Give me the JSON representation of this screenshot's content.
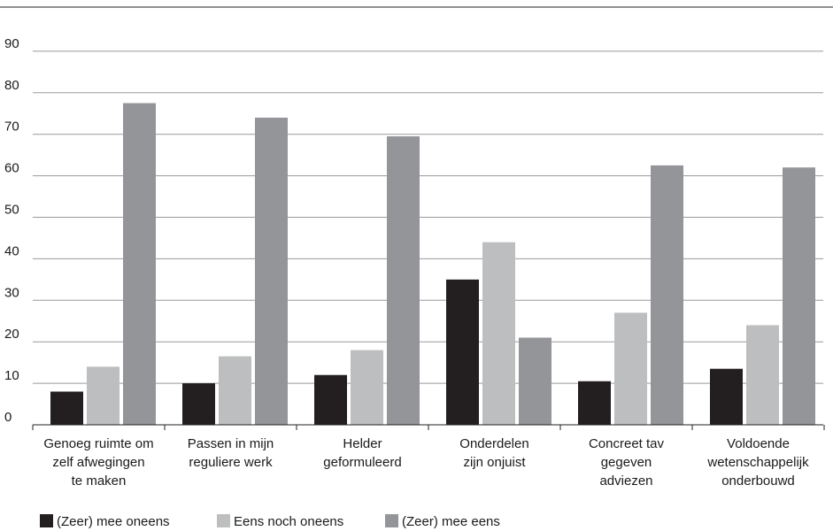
{
  "chart_data": {
    "type": "bar",
    "title": "",
    "xlabel": "",
    "ylabel": "",
    "ylim": [
      0,
      90
    ],
    "yticks": [
      0,
      10,
      20,
      30,
      40,
      50,
      60,
      70,
      80,
      90
    ],
    "grid": true,
    "legend_position": "bottom-left",
    "categories": [
      [
        "Genoeg ruimte om",
        "zelf afwegingen",
        "te maken"
      ],
      [
        "Passen in mijn",
        "reguliere werk"
      ],
      [
        "Helder",
        "geformuleerd"
      ],
      [
        "Onderdelen",
        "zijn onjuist"
      ],
      [
        "Concreet tav",
        "gegeven",
        "adviezen"
      ],
      [
        "Voldoende",
        "wetenschappelijk",
        "onderbouwd"
      ]
    ],
    "series": [
      {
        "name": "(Zeer) mee oneens",
        "color": "#231f20",
        "values": [
          8,
          10,
          12,
          35,
          10.5,
          13.5
        ]
      },
      {
        "name": "Eens noch oneens",
        "color": "#bcbec0",
        "values": [
          14,
          16.5,
          18,
          44,
          27,
          24
        ]
      },
      {
        "name": "(Zeer) mee eens",
        "color": "#939598",
        "values": [
          77.5,
          74,
          69.5,
          21,
          62.5,
          62
        ]
      }
    ]
  }
}
